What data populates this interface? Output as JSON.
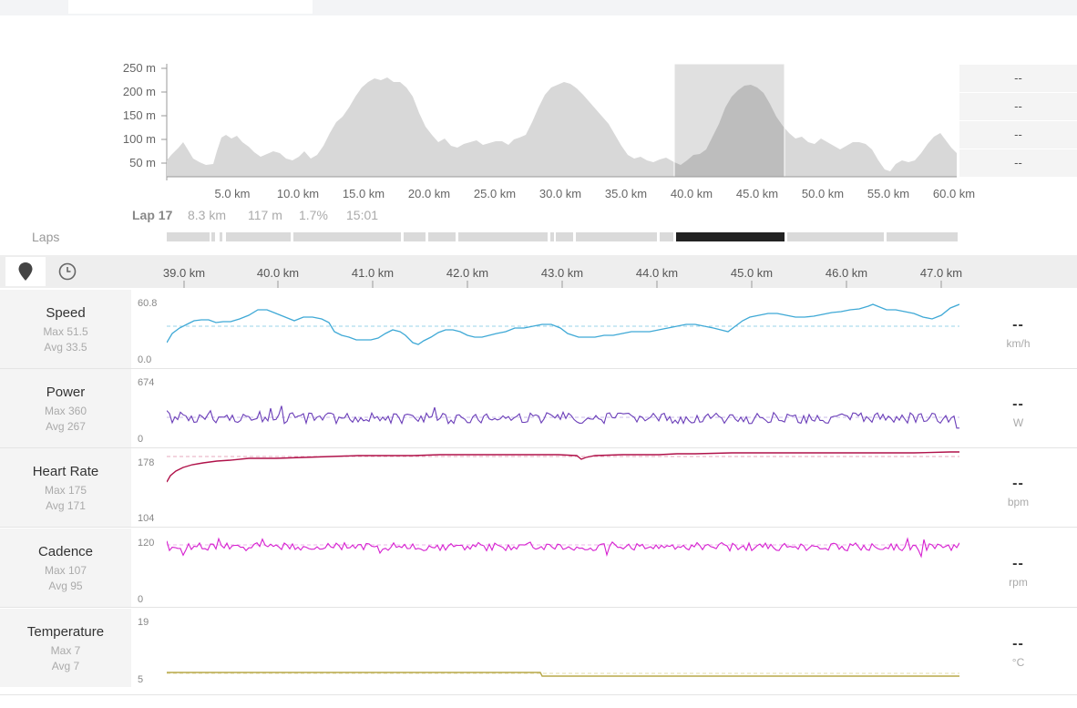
{
  "elevation": {
    "y_ticks": [
      "250 m",
      "200 m",
      "150 m",
      "100 m",
      "50 m"
    ],
    "x_ticks": [
      "5.0 km",
      "10.0 km",
      "15.0 km",
      "20.0 km",
      "25.0 km",
      "30.0 km",
      "35.0 km",
      "40.0 km",
      "45.0 km",
      "50.0 km",
      "55.0 km",
      "60.0 km"
    ],
    "side_values": [
      "--",
      "--",
      "--",
      "--"
    ]
  },
  "lap_info": {
    "lap": "Lap 17",
    "distance": "8.3 km",
    "elevation": "117 m",
    "grade": "1.7%",
    "time": "15:01"
  },
  "laps_label": "Laps",
  "toolbar": {
    "map_icon": "map-pin-icon",
    "time_icon": "clock-icon"
  },
  "distance_ticks": [
    "39.0 km",
    "40.0 km",
    "41.0 km",
    "42.0 km",
    "43.0 km",
    "44.0 km",
    "45.0 km",
    "46.0 km",
    "47.0 km"
  ],
  "metrics": [
    {
      "name": "Speed",
      "max": "Max 51.5",
      "avg": "Avg 33.5",
      "ymax": "60.8",
      "ymin": "0.0",
      "current": "--",
      "unit": "km/h",
      "color": "#3fa9d6"
    },
    {
      "name": "Power",
      "max": "Max 360",
      "avg": "Avg 267",
      "ymax": "674",
      "ymin": "0",
      "current": "--",
      "unit": "W",
      "color": "#6a3db8"
    },
    {
      "name": "Heart Rate",
      "max": "Max 175",
      "avg": "Avg 171",
      "ymax": "178",
      "ymin": "104",
      "current": "--",
      "unit": "bpm",
      "color": "#b0124a"
    },
    {
      "name": "Cadence",
      "max": "Max 107",
      "avg": "Avg 95",
      "ymax": "120",
      "ymin": "0",
      "current": "--",
      "unit": "rpm",
      "color": "#d61fd0"
    },
    {
      "name": "Temperature",
      "max": "Max 7",
      "avg": "Avg 7",
      "ymax": "19",
      "ymin": "5",
      "current": "--",
      "unit": "°C",
      "color": "#b8a84a"
    }
  ]
}
